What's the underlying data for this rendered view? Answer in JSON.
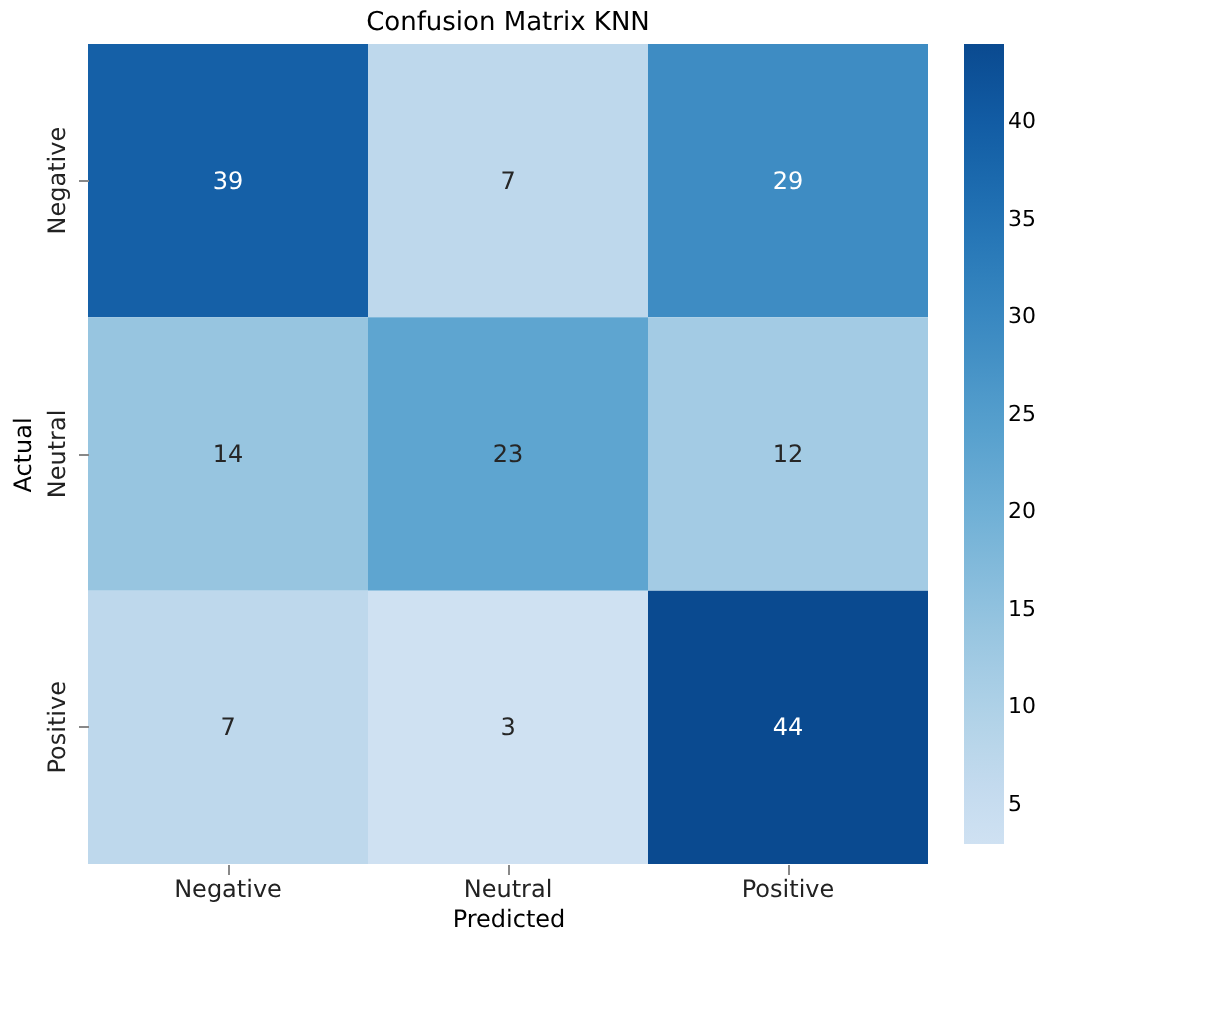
{
  "chart_data": {
    "type": "heatmap",
    "title": "Confusion Matrix KNN",
    "xlabel": "Predicted",
    "ylabel": "Actual",
    "categories": [
      "Negative",
      "Neutral",
      "Positive"
    ],
    "y_categories": [
      "Negative",
      "Neutral",
      "Positive"
    ],
    "cells": [
      [
        39,
        7,
        29
      ],
      [
        14,
        23,
        12
      ],
      [
        7,
        3,
        44
      ]
    ],
    "clim": [
      3,
      44
    ],
    "cticks": [
      5,
      10,
      15,
      20,
      25,
      30,
      35,
      40
    ],
    "data_labels": true
  }
}
